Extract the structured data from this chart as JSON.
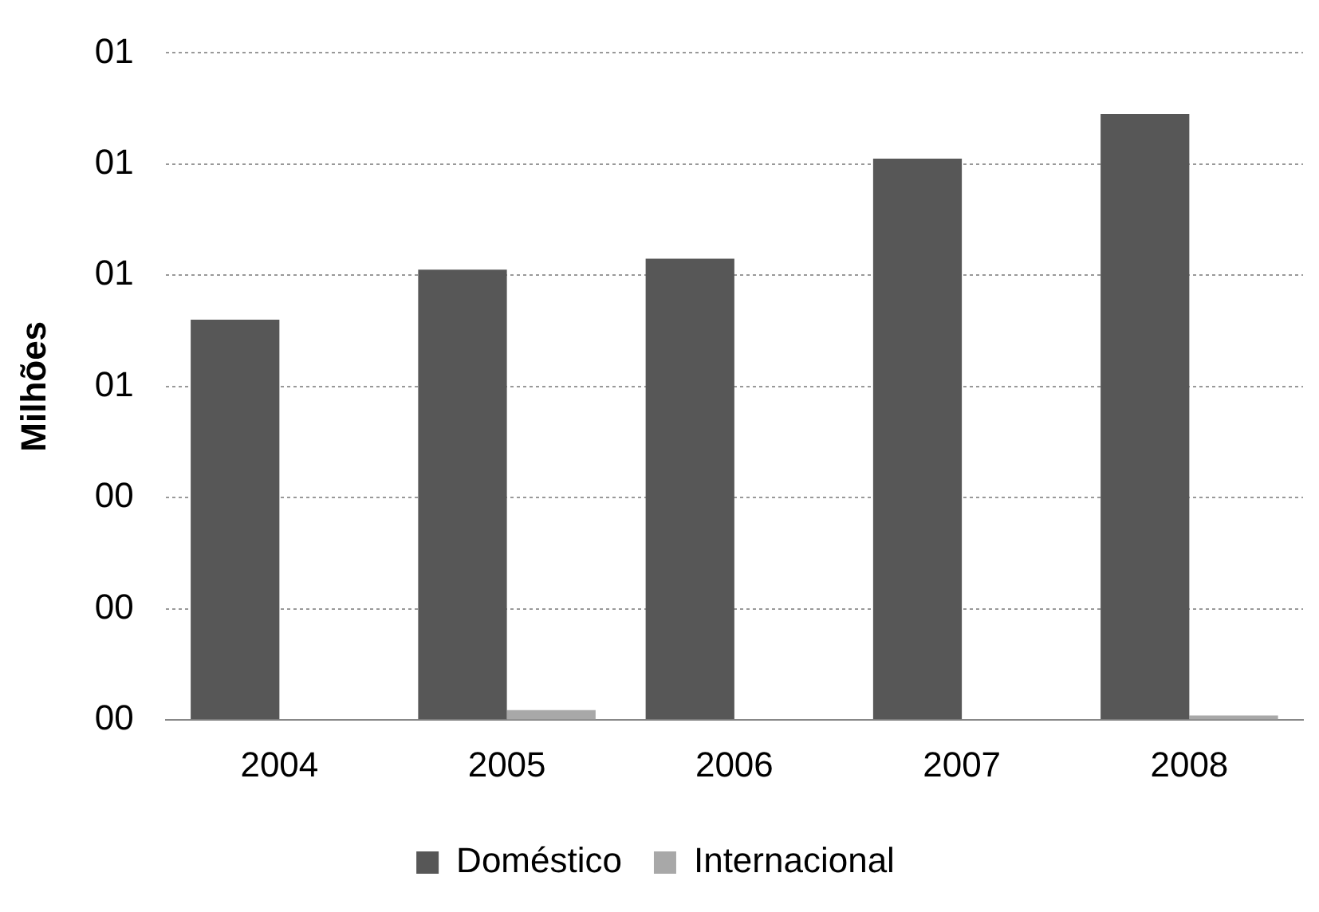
{
  "chart_data": {
    "type": "bar",
    "ylabel": "Milhões",
    "categories": [
      "2004",
      "2005",
      "2006",
      "2007",
      "2008"
    ],
    "series": [
      {
        "name": "Doméstico",
        "color": "#575757",
        "values": [
          0.72,
          0.81,
          0.83,
          1.01,
          1.09
        ]
      },
      {
        "name": "Internacional",
        "color": "#a8a8a8",
        "values": [
          null,
          0.018,
          null,
          null,
          0.008
        ]
      }
    ],
    "ylim": [
      0,
      1.2
    ],
    "yticks": [
      {
        "value": 0,
        "label": "00"
      },
      {
        "value": 0.2,
        "label": "00"
      },
      {
        "value": 0.4,
        "label": "00"
      },
      {
        "value": 0.6,
        "label": "01"
      },
      {
        "value": 0.8,
        "label": "01"
      },
      {
        "value": 1.0,
        "label": "01"
      },
      {
        "value": 1.2,
        "label": "01"
      }
    ],
    "grid": "y",
    "legend": "bottom"
  }
}
